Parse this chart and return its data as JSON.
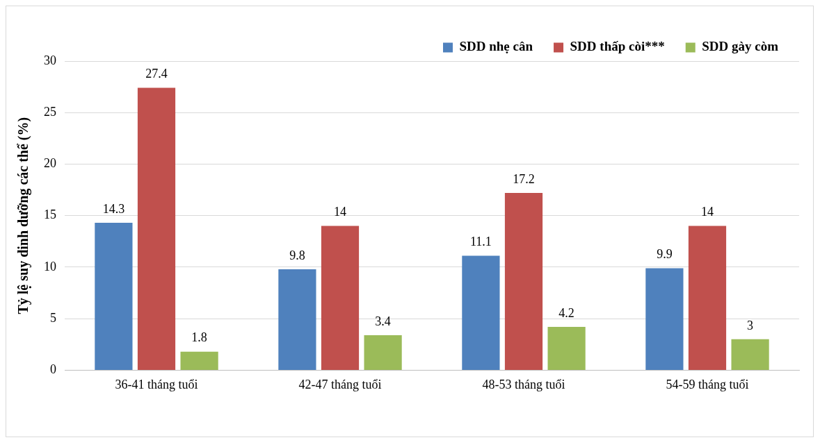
{
  "chart_data": {
    "type": "bar",
    "ylabel": "Tỷ lệ suy dinh dưỡng các thể (%)",
    "categories": [
      "36-41 tháng tuổi",
      "42-47 tháng tuổi",
      "48-53 tháng tuổi",
      "54-59 tháng tuổi"
    ],
    "series": [
      {
        "name": "SDD nhẹ cân",
        "color": "#4f81bd",
        "values": [
          14.3,
          9.8,
          11.1,
          9.9
        ]
      },
      {
        "name": "SDD thấp còi***",
        "color": "#c0504d",
        "values": [
          27.4,
          14,
          17.2,
          14
        ]
      },
      {
        "name": "SDD gày còm",
        "color": "#9bbb59",
        "values": [
          1.8,
          3.4,
          4.2,
          3
        ]
      }
    ],
    "ylim": [
      0,
      30
    ],
    "yticks": [
      0,
      5,
      10,
      15,
      20,
      25,
      30
    ],
    "grid": "y",
    "legend": "top right",
    "data_labels": true
  }
}
